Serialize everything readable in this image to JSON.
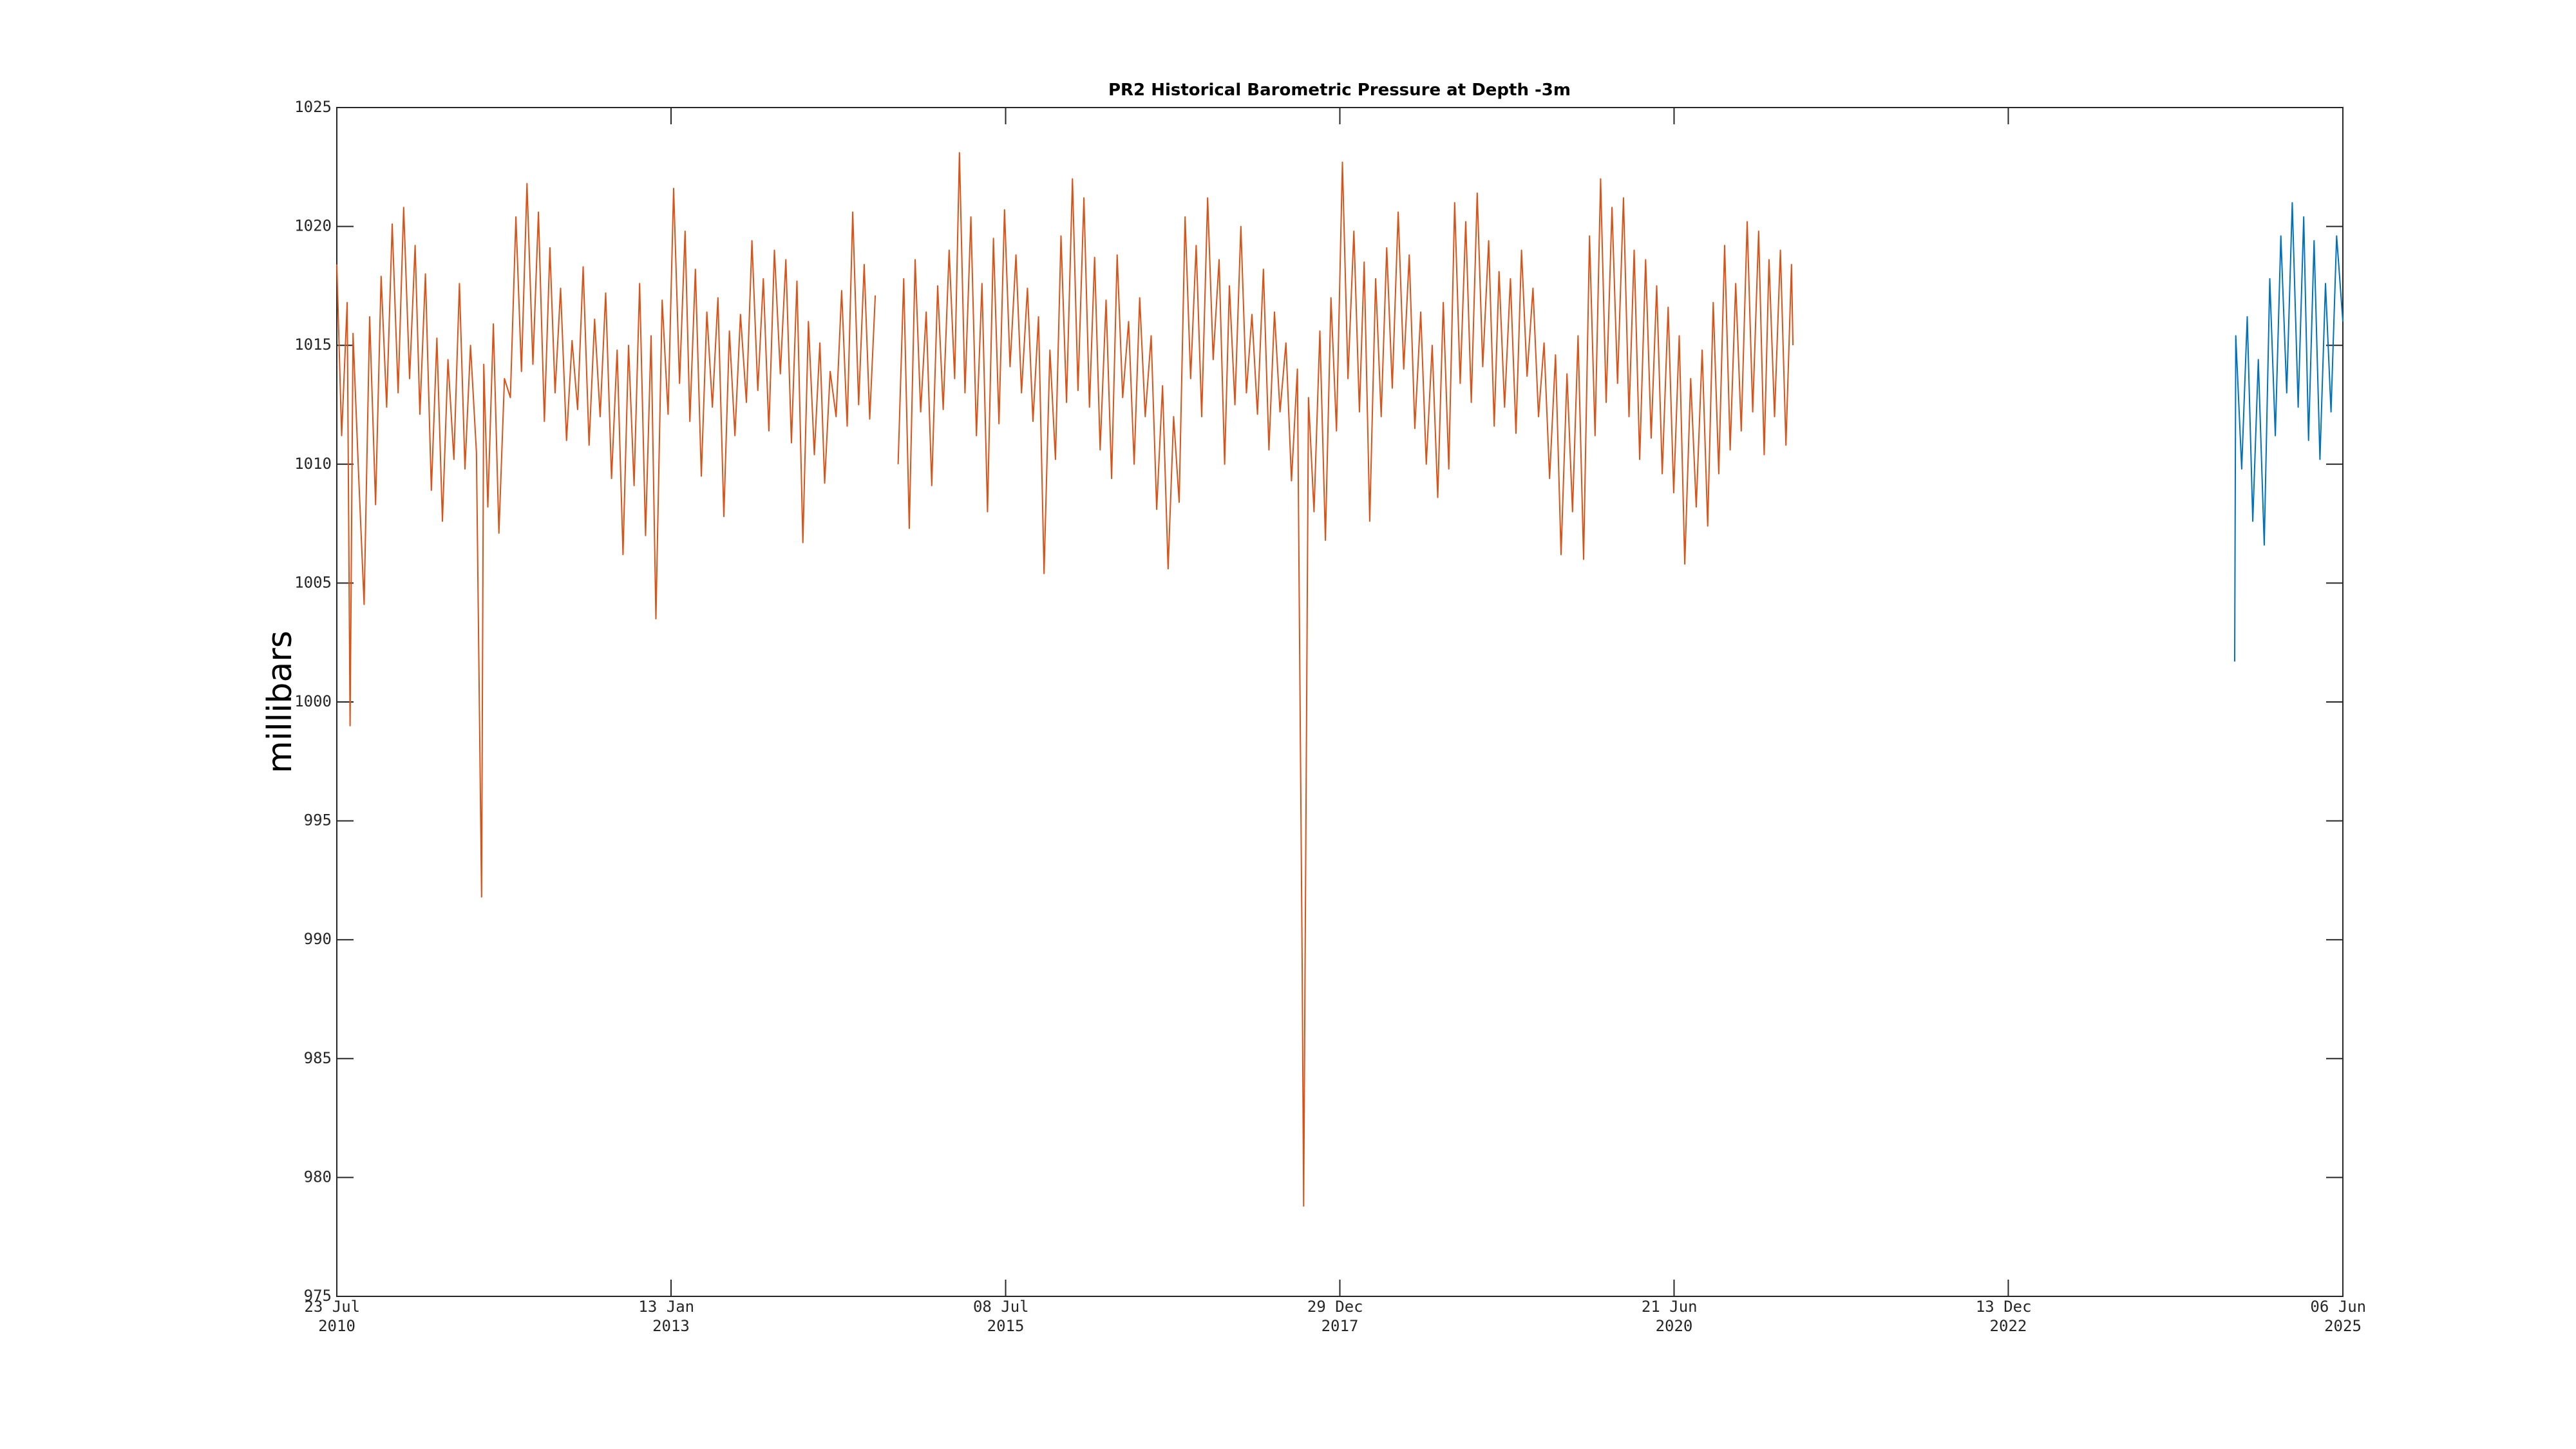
{
  "chart_data": {
    "type": "line",
    "title": "PR2 Historical Barometric Pressure at Depth -3m",
    "ylabel": "millibars",
    "xlim": [
      "2010-07-23",
      "2025-06-06"
    ],
    "xticks": [
      {
        "value": "2010-07-23",
        "label": "23 Jul 2010"
      },
      {
        "value": "2013-01-13",
        "label": "13 Jan 2013"
      },
      {
        "value": "2015-07-08",
        "label": "08 Jul 2015"
      },
      {
        "value": "2017-12-29",
        "label": "29 Dec 2017"
      },
      {
        "value": "2020-06-21",
        "label": "21 Jun 2020"
      },
      {
        "value": "2022-12-13",
        "label": "13 Dec 2022"
      },
      {
        "value": "2025-06-06",
        "label": "06 Jun 2025"
      }
    ],
    "ylim": [
      975,
      1025
    ],
    "yticks": [
      975,
      980,
      985,
      990,
      995,
      1000,
      1005,
      1010,
      1015,
      1020,
      1025
    ],
    "grid": false,
    "series": [
      {
        "color": "#d95319",
        "x": [
          "2010-07-23",
          "2010-08-05",
          "2010-08-20",
          "2010-08-28",
          "2010-09-05",
          "2010-09-20",
          "2010-10-05",
          "2010-10-20",
          "2010-11-05",
          "2010-11-20",
          "2010-12-05",
          "2010-12-20",
          "2011-01-05",
          "2011-01-20",
          "2011-02-05",
          "2011-02-20",
          "2011-03-05",
          "2011-03-20",
          "2011-04-05",
          "2011-04-20",
          "2011-05-05",
          "2011-05-20",
          "2011-06-05",
          "2011-06-20",
          "2011-07-05",
          "2011-07-20",
          "2011-08-05",
          "2011-08-19",
          "2011-08-25",
          "2011-09-05",
          "2011-09-20",
          "2011-10-05",
          "2011-10-20",
          "2011-11-05",
          "2011-11-20",
          "2011-12-05",
          "2011-12-20",
          "2012-01-05",
          "2012-01-20",
          "2012-02-05",
          "2012-02-20",
          "2012-03-05",
          "2012-03-20",
          "2012-04-05",
          "2012-04-20",
          "2012-05-05",
          "2012-05-20",
          "2012-06-05",
          "2012-06-20",
          "2012-07-05",
          "2012-07-20",
          "2012-08-05",
          "2012-08-20",
          "2012-09-05",
          "2012-09-20",
          "2012-10-05",
          "2012-10-20",
          "2012-11-05",
          "2012-11-20",
          "2012-12-03",
          "2012-12-20",
          "2013-01-05",
          "2013-01-20",
          "2013-02-05",
          "2013-02-20",
          "2013-03-05",
          "2013-03-20",
          "2013-04-05",
          "2013-04-20",
          "2013-05-05",
          "2013-05-20",
          "2013-06-05",
          "2013-06-20",
          "2013-07-05",
          "2013-07-20",
          "2013-08-05",
          "2013-08-20",
          "2013-09-05",
          "2013-09-20",
          "2013-10-05",
          "2013-10-20",
          "2013-11-05",
          "2013-11-20",
          "2013-12-05",
          "2013-12-20",
          "2014-01-05",
          "2014-01-20",
          "2014-02-05",
          "2014-02-20",
          "2014-03-05",
          "2014-03-20",
          "2014-04-05",
          "2014-04-20",
          "2014-05-05",
          "2014-05-20",
          "2014-06-05",
          "2014-06-20",
          "2014-07-05",
          "2014-07-20",
          "2014-08-20",
          "2014-09-20",
          "2014-10-05",
          "2014-10-20",
          "2014-11-05",
          "2014-11-20",
          "2014-12-05",
          "2014-12-20",
          "2015-01-05",
          "2015-01-20",
          "2015-02-05",
          "2015-02-20",
          "2015-03-05",
          "2015-03-20",
          "2015-04-05",
          "2015-04-20",
          "2015-05-05",
          "2015-05-20",
          "2015-06-05",
          "2015-06-20",
          "2015-07-05",
          "2015-07-20",
          "2015-08-05",
          "2015-08-20",
          "2015-09-05",
          "2015-09-20",
          "2015-10-05",
          "2015-10-20",
          "2015-11-05",
          "2015-11-20",
          "2015-12-05",
          "2015-12-20",
          "2016-01-05",
          "2016-01-20",
          "2016-02-05",
          "2016-02-20",
          "2016-03-05",
          "2016-03-20",
          "2016-04-05",
          "2016-04-20",
          "2016-05-05",
          "2016-05-20",
          "2016-06-05",
          "2016-06-20",
          "2016-07-05",
          "2016-07-20",
          "2016-08-05",
          "2016-08-20",
          "2016-09-05",
          "2016-09-20",
          "2016-10-05",
          "2016-10-20",
          "2016-11-05",
          "2016-11-20",
          "2016-12-05",
          "2016-12-20",
          "2017-01-05",
          "2017-01-20",
          "2017-02-05",
          "2017-02-20",
          "2017-03-05",
          "2017-03-20",
          "2017-04-05",
          "2017-04-20",
          "2017-05-05",
          "2017-05-20",
          "2017-06-05",
          "2017-06-20",
          "2017-07-05",
          "2017-07-20",
          "2017-08-05",
          "2017-08-20",
          "2017-09-05",
          "2017-09-18",
          "2017-09-22",
          "2017-10-05",
          "2017-10-20",
          "2017-11-05",
          "2017-11-20",
          "2017-12-05",
          "2017-12-20",
          "2018-01-05",
          "2018-01-20",
          "2018-02-05",
          "2018-02-20",
          "2018-03-05",
          "2018-03-20",
          "2018-04-05",
          "2018-04-20",
          "2018-05-05",
          "2018-05-20",
          "2018-06-05",
          "2018-06-20",
          "2018-07-05",
          "2018-07-20",
          "2018-08-05",
          "2018-08-20",
          "2018-09-05",
          "2018-09-20",
          "2018-10-05",
          "2018-10-20",
          "2018-11-05",
          "2018-11-20",
          "2018-12-05",
          "2018-12-20",
          "2019-01-05",
          "2019-01-20",
          "2019-02-05",
          "2019-02-20",
          "2019-03-05",
          "2019-03-20",
          "2019-04-05",
          "2019-04-20",
          "2019-05-05",
          "2019-05-20",
          "2019-06-05",
          "2019-06-20",
          "2019-07-05",
          "2019-07-20",
          "2019-08-05",
          "2019-08-20",
          "2019-09-05",
          "2019-09-20",
          "2019-10-05",
          "2019-10-20",
          "2019-11-05",
          "2019-11-20",
          "2019-12-05",
          "2019-12-20",
          "2020-01-05",
          "2020-01-20",
          "2020-02-05",
          "2020-02-20",
          "2020-03-05",
          "2020-03-20",
          "2020-04-05",
          "2020-04-20",
          "2020-05-05",
          "2020-05-20",
          "2020-06-05",
          "2020-06-20",
          "2020-07-05",
          "2020-07-20",
          "2020-08-05",
          "2020-08-20",
          "2020-09-05",
          "2020-09-20",
          "2020-10-05",
          "2020-10-20",
          "2020-11-05",
          "2020-11-20",
          "2020-12-05",
          "2020-12-20",
          "2021-01-05",
          "2021-01-20",
          "2021-02-05",
          "2021-02-20",
          "2021-03-05",
          "2021-03-20",
          "2021-04-05",
          "2021-04-20",
          "2021-05-05",
          "2021-05-09"
        ],
        "values": [
          1018.4,
          1011.2,
          1016.8,
          999.0,
          1015.5,
          1009.6,
          1004.1,
          1016.2,
          1008.3,
          1017.9,
          1012.4,
          1020.1,
          1013.0,
          1020.8,
          1013.6,
          1019.2,
          1012.1,
          1018.0,
          1008.9,
          1015.3,
          1007.6,
          1014.4,
          1010.2,
          1017.6,
          1009.8,
          1015.0,
          1010.5,
          991.8,
          1014.2,
          1008.2,
          1015.9,
          1007.1,
          1013.6,
          1012.8,
          1020.4,
          1013.9,
          1021.8,
          1014.2,
          1020.6,
          1011.8,
          1019.1,
          1013.0,
          1017.4,
          1011.0,
          1015.2,
          1012.3,
          1018.3,
          1010.8,
          1016.1,
          1012.0,
          1017.2,
          1009.4,
          1014.8,
          1006.2,
          1015.0,
          1009.1,
          1017.6,
          1007.0,
          1015.4,
          1003.5,
          1016.9,
          1012.1,
          1021.6,
          1013.4,
          1019.8,
          1011.8,
          1018.2,
          1009.5,
          1016.4,
          1012.4,
          1017.0,
          1007.8,
          1015.6,
          1011.2,
          1016.3,
          1012.6,
          1019.4,
          1013.1,
          1017.8,
          1011.4,
          1019.0,
          1013.8,
          1018.6,
          1010.9,
          1017.7,
          1006.7,
          1016.0,
          1010.4,
          1015.1,
          1009.2,
          1013.9,
          1012.0,
          1017.3,
          1011.6,
          1020.6,
          1012.5,
          1018.4,
          1011.9,
          1017.1,
          null,
          1010.0,
          1017.8,
          1007.3,
          1018.6,
          1012.2,
          1016.4,
          1009.1,
          1017.5,
          1012.3,
          1019.0,
          1013.6,
          1023.1,
          1013.0,
          1020.4,
          1011.2,
          1017.6,
          1008.0,
          1019.5,
          1011.7,
          1020.7,
          1014.1,
          1018.8,
          1013.0,
          1017.4,
          1011.8,
          1016.2,
          1005.4,
          1014.8,
          1010.2,
          1019.6,
          1012.6,
          1022.0,
          1013.1,
          1021.2,
          1012.4,
          1018.7,
          1010.6,
          1016.9,
          1009.4,
          1018.8,
          1012.8,
          1016.0,
          1010.0,
          1017.0,
          1012.0,
          1015.4,
          1008.1,
          1013.3,
          1005.6,
          1012.0,
          1008.4,
          1020.4,
          1013.6,
          1019.2,
          1012.0,
          1021.2,
          1014.4,
          1018.6,
          1010.0,
          1017.5,
          1012.5,
          1020.0,
          1013.0,
          1016.3,
          1012.1,
          1018.2,
          1010.6,
          1016.4,
          1012.2,
          1015.1,
          1009.3,
          1014.0,
          989.0,
          978.8,
          1012.8,
          1008.0,
          1015.6,
          1006.8,
          1017.0,
          1011.4,
          1022.7,
          1013.6,
          1019.8,
          1012.2,
          1018.5,
          1007.6,
          1017.8,
          1012.0,
          1019.1,
          1013.2,
          1020.6,
          1014.0,
          1018.8,
          1011.5,
          1016.4,
          1010.0,
          1015.0,
          1008.6,
          1016.8,
          1009.8,
          1021.0,
          1013.4,
          1020.2,
          1012.6,
          1021.4,
          1014.1,
          1019.4,
          1011.6,
          1018.1,
          1012.4,
          1017.8,
          1011.3,
          1019.0,
          1013.7,
          1017.4,
          1012.0,
          1015.1,
          1009.4,
          1014.6,
          1006.2,
          1013.8,
          1008.0,
          1015.4,
          1006.0,
          1019.6,
          1011.2,
          1022.0,
          1012.6,
          1020.8,
          1013.4,
          1021.2,
          1012.0,
          1019.0,
          1010.2,
          1018.6,
          1011.1,
          1017.5,
          1009.6,
          1016.6,
          1008.8,
          1015.4,
          1005.8,
          1013.6,
          1008.2,
          1014.8,
          1007.4,
          1016.8,
          1009.6,
          1019.2,
          1010.6,
          1017.6,
          1011.4,
          1020.2,
          1012.2,
          1019.8,
          1010.4,
          1018.6,
          1012.0,
          1019.0,
          1010.8,
          1018.4,
          1015.0
        ]
      },
      {
        "color": "#0072bd",
        "x": [
          "2024-08-17",
          "2024-08-20",
          "2024-09-05",
          "2024-09-20",
          "2024-10-05",
          "2024-10-20",
          "2024-11-05",
          "2024-11-20",
          "2024-12-05",
          "2024-12-20",
          "2025-01-05",
          "2025-01-20",
          "2025-02-05",
          "2025-02-20",
          "2025-03-05",
          "2025-03-20",
          "2025-04-05",
          "2025-04-20",
          "2025-05-05",
          "2025-05-20",
          "2025-06-06"
        ],
        "values": [
          1001.7,
          1015.4,
          1009.8,
          1016.2,
          1007.6,
          1014.4,
          1006.6,
          1017.8,
          1011.2,
          1019.6,
          1013.0,
          1021.0,
          1012.4,
          1020.4,
          1011.0,
          1019.4,
          1010.2,
          1017.6,
          1012.2,
          1019.6,
          1016.0
        ]
      }
    ]
  }
}
